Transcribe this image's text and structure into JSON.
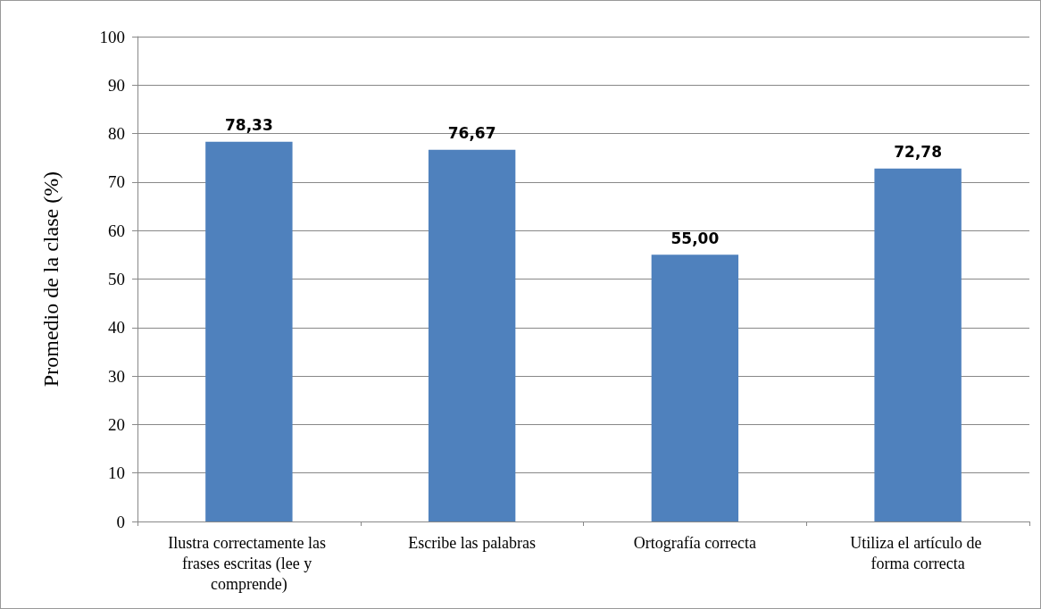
{
  "chart_data": {
    "type": "bar",
    "ylabel": "Promedio de la clase (%)",
    "categories": [
      "Ilustra correctamente las frases escritas (lee y comprende)",
      "Escribe las palabras",
      "Ortografía correcta",
      "Utiliza el artículo de forma correcta"
    ],
    "values": [
      78.33,
      76.67,
      55.0,
      72.78
    ],
    "value_labels": [
      "78,33",
      "76,67",
      "55,00",
      "72,78"
    ],
    "color": "#4f81bd",
    "ylim": [
      0,
      100
    ],
    "yticks": [
      0,
      10,
      20,
      30,
      40,
      50,
      60,
      70,
      80,
      90,
      100
    ],
    "grid": "y"
  }
}
